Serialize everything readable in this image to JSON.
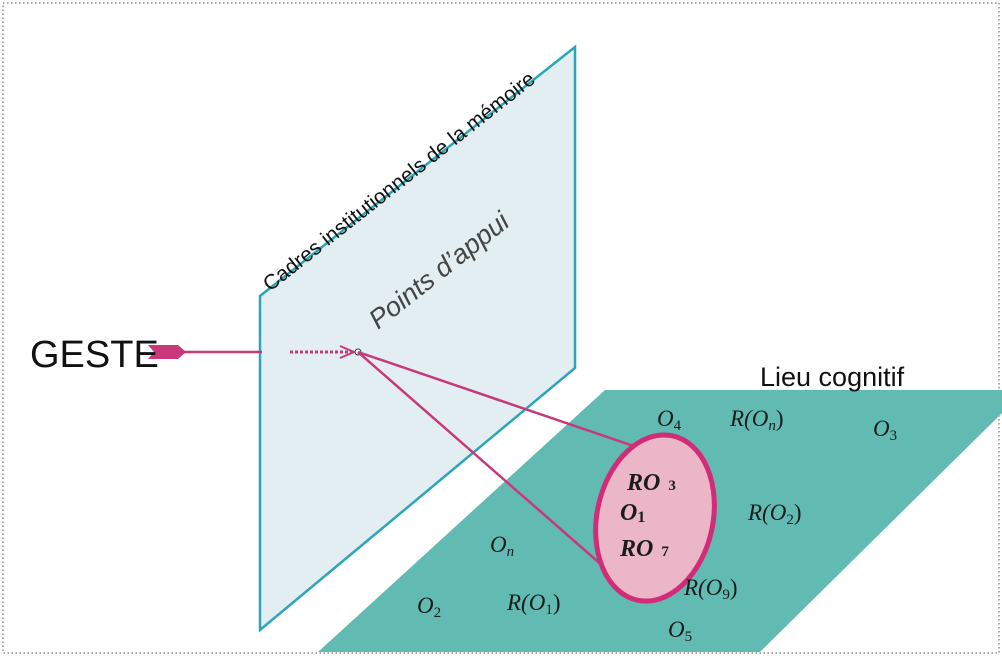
{
  "diagram": {
    "title_vertical_plane": "Cadres institutionnels de la mémoire",
    "plane_label": "Points d’appui",
    "geste_label": "GESTE",
    "ground_label": "Lieu cognitif",
    "items": {
      "o4": {
        "base": "O",
        "sub": "4"
      },
      "r_on": {
        "base": "R(O",
        "sub": "n",
        "tail": ")"
      },
      "o3": {
        "base": "O",
        "sub": "3"
      },
      "r_o2": {
        "base": "R(O",
        "sub": "2",
        "tail": ")"
      },
      "on": {
        "base": "O",
        "sub": "n"
      },
      "r_o9": {
        "base": "R(O",
        "sub": "9",
        "tail": ")"
      },
      "o2": {
        "base": "O",
        "sub": "2"
      },
      "r_o1": {
        "base": "R(O",
        "sub": "1",
        "tail": ")"
      },
      "o5": {
        "base": "O",
        "sub": "5"
      },
      "focus_r3_main": "RO",
      "focus_r3_sub": "3",
      "focus_o1_main": "O",
      "focus_o1_sub": "1",
      "focus_r7_main": "RO",
      "focus_r7_sub": "7"
    },
    "colors": {
      "plane_fill": "#e2eef1",
      "plane_stroke": "#2aa6b7",
      "ground_fill": "#62bbb2",
      "arrow": "#c7397a",
      "focus_fill": "#ebb7c8",
      "focus_stroke": "#d22b78"
    }
  }
}
